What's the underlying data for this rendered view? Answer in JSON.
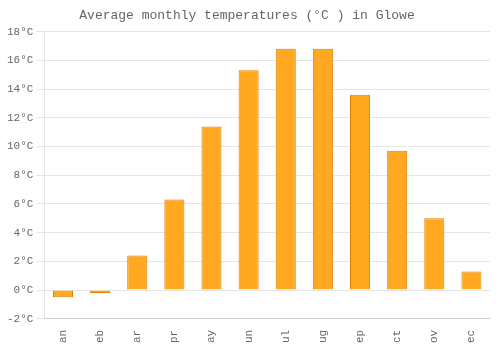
{
  "chart_data": {
    "type": "bar",
    "title": "Average monthly temperatures (°C ) in Glowe",
    "categories": [
      "an",
      "eb",
      "ar",
      "pr",
      "ay",
      "un",
      "ul",
      "ug",
      "ep",
      "ct",
      "ov",
      "ec"
    ],
    "values": [
      -0.5,
      -0.2,
      2.4,
      6.3,
      11.4,
      15.3,
      16.8,
      16.8,
      13.6,
      9.7,
      5.0,
      1.3
    ],
    "color": "#FFA820",
    "ylim": [
      -2,
      18
    ],
    "yticks": [
      {
        "value": -2,
        "label": "-2°C"
      },
      {
        "value": 0,
        "label": "0°C"
      },
      {
        "value": 2,
        "label": "2°C"
      },
      {
        "value": 4,
        "label": "4°C"
      },
      {
        "value": 6,
        "label": "6°C"
      },
      {
        "value": 8,
        "label": "8°C"
      },
      {
        "value": 10,
        "label": "10°C"
      },
      {
        "value": 12,
        "label": "12°C"
      },
      {
        "value": 14,
        "label": "14°C"
      },
      {
        "value": 16,
        "label": "16°C"
      },
      {
        "value": 18,
        "label": "18°C"
      }
    ],
    "grid": true
  }
}
